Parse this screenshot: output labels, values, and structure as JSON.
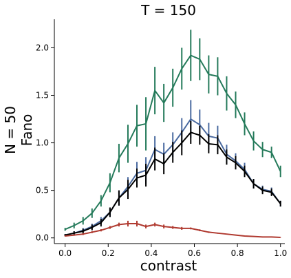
{
  "chart_data": {
    "type": "line",
    "title": "T = 150",
    "xlabel": "contrast",
    "ylabel_lines": [
      "N = 50",
      "Fano"
    ],
    "xlim": [
      -0.05,
      1.02
    ],
    "ylim": [
      -0.06,
      2.3
    ],
    "xticks": [
      0.0,
      0.2,
      0.4,
      0.6,
      0.8,
      1.0
    ],
    "xtick_labels": [
      "0.0",
      "0.2",
      "0.4",
      "0.6",
      "0.8",
      "1.0"
    ],
    "yticks": [
      0.0,
      0.5,
      1.0,
      1.5,
      2.0
    ],
    "ytick_labels": [
      "0.0",
      "0.5",
      "1.0",
      "1.5",
      "2.0"
    ],
    "grid": false,
    "x": [
      0.0,
      0.0417,
      0.0833,
      0.125,
      0.1667,
      0.2083,
      0.25,
      0.2917,
      0.3333,
      0.375,
      0.4167,
      0.4583,
      0.5,
      0.5417,
      0.5833,
      0.625,
      0.6667,
      0.7083,
      0.75,
      0.7917,
      0.8333,
      0.875,
      0.9167,
      0.9583,
      1.0
    ],
    "series": [
      {
        "color": "#247a5a",
        "values": [
          0.09,
          0.13,
          0.18,
          0.26,
          0.39,
          0.58,
          0.84,
          0.99,
          1.18,
          1.2,
          1.55,
          1.42,
          1.58,
          1.78,
          1.92,
          1.88,
          1.72,
          1.7,
          1.52,
          1.4,
          1.2,
          1.02,
          0.93,
          0.9,
          0.7
        ],
        "errors": [
          0.015,
          0.03,
          0.04,
          0.05,
          0.06,
          0.1,
          0.15,
          0.2,
          0.22,
          0.28,
          0.25,
          0.2,
          0.2,
          0.22,
          0.27,
          0.22,
          0.2,
          0.2,
          0.18,
          0.14,
          0.12,
          0.1,
          0.08,
          0.06,
          0.06
        ]
      },
      {
        "color": "#4a6aa0",
        "values": [
          0.03,
          0.05,
          0.08,
          0.12,
          0.18,
          0.27,
          0.42,
          0.54,
          0.68,
          0.71,
          0.93,
          0.88,
          0.98,
          1.11,
          1.25,
          1.19,
          1.07,
          1.05,
          0.88,
          0.81,
          0.72,
          0.57,
          0.51,
          0.49,
          0.36
        ],
        "errors": [
          0.01,
          0.02,
          0.025,
          0.03,
          0.04,
          0.05,
          0.08,
          0.1,
          0.12,
          0.14,
          0.14,
          0.12,
          0.13,
          0.15,
          0.2,
          0.16,
          0.14,
          0.13,
          0.1,
          0.08,
          0.07,
          0.05,
          0.04,
          0.04,
          0.03
        ]
      },
      {
        "color": "#000000",
        "values": [
          0.03,
          0.05,
          0.07,
          0.11,
          0.16,
          0.27,
          0.42,
          0.51,
          0.63,
          0.66,
          0.83,
          0.78,
          0.9,
          1.0,
          1.11,
          1.08,
          0.99,
          0.98,
          0.85,
          0.79,
          0.7,
          0.57,
          0.5,
          0.48,
          0.36
        ],
        "errors": [
          0.01,
          0.02,
          0.025,
          0.03,
          0.04,
          0.05,
          0.08,
          0.1,
          0.1,
          0.12,
          0.12,
          0.11,
          0.11,
          0.13,
          0.12,
          0.1,
          0.1,
          0.1,
          0.08,
          0.07,
          0.06,
          0.05,
          0.04,
          0.04,
          0.03
        ]
      },
      {
        "color": "#b03a30",
        "values": [
          0.02,
          0.03,
          0.04,
          0.06,
          0.08,
          0.11,
          0.14,
          0.15,
          0.15,
          0.12,
          0.14,
          0.12,
          0.11,
          0.1,
          0.1,
          0.08,
          0.06,
          0.05,
          0.04,
          0.03,
          0.02,
          0.015,
          0.01,
          0.01,
          0.005
        ],
        "errors": [
          0.005,
          0.008,
          0.01,
          0.01,
          0.012,
          0.015,
          0.02,
          0.03,
          0.03,
          0.02,
          0.02,
          0.02,
          0.015,
          0.015,
          0.01,
          0.01,
          0.008,
          0.006,
          0.005,
          0.004,
          0.003,
          0.002,
          0.002,
          0.002,
          0.002
        ]
      }
    ]
  }
}
